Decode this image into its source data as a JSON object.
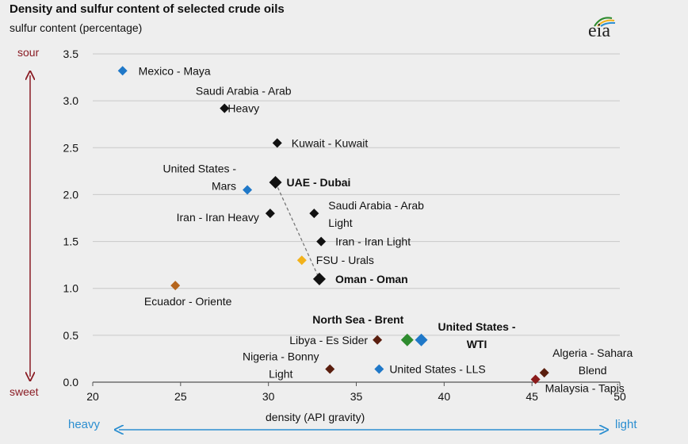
{
  "chart_data": {
    "type": "scatter",
    "title": "Density and sulfur content of selected crude oils",
    "ylabel": "sulfur content (percentage)",
    "xlabel": "density (API gravity)",
    "xlim": [
      20,
      50
    ],
    "ylim": [
      0,
      3.5
    ],
    "xticks": [
      "20",
      "25",
      "30",
      "35",
      "40",
      "45",
      "50"
    ],
    "yticks": [
      "0.0",
      "0.5",
      "1.0",
      "1.5",
      "2.0",
      "2.5",
      "3.0",
      "3.5"
    ],
    "grid": "horizontal",
    "points": [
      {
        "lines": [
          "Mexico - Maya"
        ],
        "x": 21.7,
        "y": 3.32,
        "color": "#1f78c8",
        "bold": false,
        "big": false
      },
      {
        "lines": [
          "Saudi Arabia - Arab",
          "Heavy"
        ],
        "x": 27.5,
        "y": 2.92,
        "color": "#111111",
        "bold": false,
        "big": false
      },
      {
        "lines": [
          "Kuwait - Kuwait"
        ],
        "x": 30.5,
        "y": 2.55,
        "color": "#111111",
        "bold": false,
        "big": false
      },
      {
        "lines": [
          "United States -",
          "Mars"
        ],
        "x": 28.8,
        "y": 2.05,
        "color": "#1f78c8",
        "bold": false,
        "big": false
      },
      {
        "lines": [
          "UAE - Dubai"
        ],
        "x": 30.4,
        "y": 2.13,
        "color": "#111111",
        "bold": true,
        "big": true
      },
      {
        "lines": [
          "Iran - Iran Heavy"
        ],
        "x": 30.1,
        "y": 1.8,
        "color": "#111111",
        "bold": false,
        "big": false
      },
      {
        "lines": [
          "Saudi Arabia - Arab",
          "Light"
        ],
        "x": 32.6,
        "y": 1.8,
        "color": "#111111",
        "bold": false,
        "big": false
      },
      {
        "lines": [
          "Iran - Iran Light"
        ],
        "x": 33.0,
        "y": 1.5,
        "color": "#111111",
        "bold": false,
        "big": false
      },
      {
        "lines": [
          "FSU - Urals"
        ],
        "x": 31.9,
        "y": 1.3,
        "color": "#f2b21b",
        "bold": false,
        "big": false
      },
      {
        "lines": [
          "Oman - Oman"
        ],
        "x": 32.9,
        "y": 1.1,
        "color": "#111111",
        "bold": true,
        "big": true
      },
      {
        "lines": [
          "Ecuador - Oriente"
        ],
        "x": 24.7,
        "y": 1.03,
        "color": "#b5651d",
        "bold": false,
        "big": false
      },
      {
        "lines": [
          "North Sea - Brent"
        ],
        "x": 37.9,
        "y": 0.45,
        "color": "#2e8b2e",
        "bold": true,
        "big": true
      },
      {
        "lines": [
          "United States -",
          "WTI"
        ],
        "x": 38.7,
        "y": 0.45,
        "color": "#1f78c8",
        "bold": true,
        "big": true
      },
      {
        "lines": [
          "Libya - Es Sider"
        ],
        "x": 36.2,
        "y": 0.45,
        "color": "#5a1e0e",
        "bold": false,
        "big": false
      },
      {
        "lines": [
          "Nigeria - Bonny",
          "Light"
        ],
        "x": 33.5,
        "y": 0.14,
        "color": "#5a1e0e",
        "bold": false,
        "big": false
      },
      {
        "lines": [
          "United States - LLS"
        ],
        "x": 36.3,
        "y": 0.14,
        "color": "#1f78c8",
        "bold": false,
        "big": false
      },
      {
        "lines": [
          "Algeria - Sahara",
          "Blend"
        ],
        "x": 45.7,
        "y": 0.1,
        "color": "#5a1e0e",
        "bold": false,
        "big": false
      },
      {
        "lines": [
          "Malaysia - Tapis"
        ],
        "x": 45.2,
        "y": 0.03,
        "color": "#8b1a1a",
        "bold": false,
        "big": false
      }
    ],
    "dashed_link": [
      "UAE - Dubai",
      "Oman - Oman"
    ]
  },
  "corners": {
    "sour": "sour",
    "sweet": "sweet",
    "heavy": "heavy",
    "light": "light"
  },
  "logo": "eia",
  "colors": {
    "sulfur_arrow": "#8a1c24",
    "density_arrow": "#2b8ed0",
    "grid": "#c8c8c8"
  }
}
